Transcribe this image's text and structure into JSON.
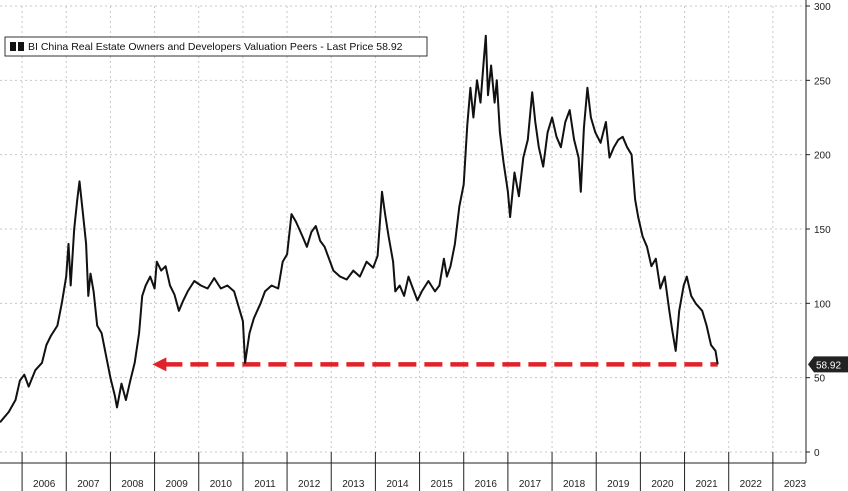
{
  "chart_data": {
    "type": "line",
    "title": "",
    "xlabel": "",
    "ylabel": "",
    "ylim": [
      0,
      300
    ],
    "xlim": [
      2005.5,
      2023.75
    ],
    "y_ticks": [
      0,
      50,
      100,
      150,
      200,
      250,
      300
    ],
    "x_tick_labels": [
      "2006",
      "2007",
      "2008",
      "2009",
      "2010",
      "2011",
      "2012",
      "2013",
      "2014",
      "2015",
      "2016",
      "2017",
      "2018",
      "2019",
      "2020",
      "2021",
      "2022",
      "2023"
    ],
    "grid": true,
    "legend_position": "top-left",
    "series": [
      {
        "name": "BI China Real Estate Owners and Developers Valuation Peers - Last Price 58.92",
        "color": "#111111",
        "points": [
          [
            2005.5,
            20
          ],
          [
            2005.7,
            27
          ],
          [
            2005.85,
            35
          ],
          [
            2005.95,
            48
          ],
          [
            2006.05,
            52
          ],
          [
            2006.15,
            44
          ],
          [
            2006.3,
            55
          ],
          [
            2006.45,
            60
          ],
          [
            2006.55,
            72
          ],
          [
            2006.65,
            78
          ],
          [
            2006.8,
            85
          ],
          [
            2006.9,
            100
          ],
          [
            2007.0,
            118
          ],
          [
            2007.05,
            140
          ],
          [
            2007.1,
            112
          ],
          [
            2007.18,
            150
          ],
          [
            2007.25,
            170
          ],
          [
            2007.3,
            182
          ],
          [
            2007.38,
            160
          ],
          [
            2007.45,
            140
          ],
          [
            2007.5,
            105
          ],
          [
            2007.55,
            120
          ],
          [
            2007.62,
            108
          ],
          [
            2007.7,
            85
          ],
          [
            2007.8,
            80
          ],
          [
            2007.9,
            65
          ],
          [
            2008.0,
            50
          ],
          [
            2008.1,
            38
          ],
          [
            2008.15,
            30
          ],
          [
            2008.25,
            46
          ],
          [
            2008.35,
            35
          ],
          [
            2008.45,
            48
          ],
          [
            2008.55,
            60
          ],
          [
            2008.65,
            80
          ],
          [
            2008.72,
            105
          ],
          [
            2008.8,
            112
          ],
          [
            2008.9,
            118
          ],
          [
            2009.0,
            110
          ],
          [
            2009.05,
            128
          ],
          [
            2009.15,
            122
          ],
          [
            2009.25,
            125
          ],
          [
            2009.35,
            112
          ],
          [
            2009.45,
            106
          ],
          [
            2009.55,
            95
          ],
          [
            2009.65,
            102
          ],
          [
            2009.75,
            108
          ],
          [
            2009.9,
            115
          ],
          [
            2010.05,
            112
          ],
          [
            2010.2,
            110
          ],
          [
            2010.35,
            117
          ],
          [
            2010.5,
            110
          ],
          [
            2010.65,
            112
          ],
          [
            2010.8,
            108
          ],
          [
            2010.9,
            98
          ],
          [
            2011.0,
            88
          ],
          [
            2011.05,
            60
          ],
          [
            2011.15,
            80
          ],
          [
            2011.25,
            90
          ],
          [
            2011.4,
            100
          ],
          [
            2011.5,
            108
          ],
          [
            2011.65,
            112
          ],
          [
            2011.8,
            110
          ],
          [
            2011.9,
            128
          ],
          [
            2012.0,
            133
          ],
          [
            2012.1,
            160
          ],
          [
            2012.2,
            155
          ],
          [
            2012.35,
            145
          ],
          [
            2012.45,
            138
          ],
          [
            2012.55,
            148
          ],
          [
            2012.65,
            152
          ],
          [
            2012.75,
            142
          ],
          [
            2012.85,
            138
          ],
          [
            2012.95,
            130
          ],
          [
            2013.05,
            122
          ],
          [
            2013.2,
            118
          ],
          [
            2013.35,
            116
          ],
          [
            2013.5,
            122
          ],
          [
            2013.65,
            118
          ],
          [
            2013.8,
            128
          ],
          [
            2013.95,
            124
          ],
          [
            2014.05,
            132
          ],
          [
            2014.15,
            175
          ],
          [
            2014.22,
            160
          ],
          [
            2014.3,
            145
          ],
          [
            2014.4,
            128
          ],
          [
            2014.45,
            108
          ],
          [
            2014.55,
            112
          ],
          [
            2014.65,
            105
          ],
          [
            2014.75,
            118
          ],
          [
            2014.85,
            110
          ],
          [
            2014.95,
            102
          ],
          [
            2015.05,
            108
          ],
          [
            2015.2,
            115
          ],
          [
            2015.35,
            108
          ],
          [
            2015.45,
            112
          ],
          [
            2015.55,
            130
          ],
          [
            2015.62,
            118
          ],
          [
            2015.7,
            125
          ],
          [
            2015.8,
            140
          ],
          [
            2015.9,
            165
          ],
          [
            2016.0,
            180
          ],
          [
            2016.08,
            220
          ],
          [
            2016.15,
            245
          ],
          [
            2016.22,
            225
          ],
          [
            2016.3,
            250
          ],
          [
            2016.38,
            235
          ],
          [
            2016.45,
            262
          ],
          [
            2016.5,
            280
          ],
          [
            2016.55,
            240
          ],
          [
            2016.62,
            260
          ],
          [
            2016.7,
            235
          ],
          [
            2016.75,
            250
          ],
          [
            2016.82,
            215
          ],
          [
            2016.9,
            195
          ],
          [
            2017.0,
            175
          ],
          [
            2017.05,
            158
          ],
          [
            2017.15,
            188
          ],
          [
            2017.25,
            172
          ],
          [
            2017.35,
            198
          ],
          [
            2017.45,
            210
          ],
          [
            2017.55,
            242
          ],
          [
            2017.62,
            222
          ],
          [
            2017.7,
            205
          ],
          [
            2017.8,
            192
          ],
          [
            2017.9,
            215
          ],
          [
            2018.0,
            225
          ],
          [
            2018.1,
            212
          ],
          [
            2018.2,
            205
          ],
          [
            2018.3,
            222
          ],
          [
            2018.4,
            230
          ],
          [
            2018.5,
            210
          ],
          [
            2018.6,
            198
          ],
          [
            2018.65,
            175
          ],
          [
            2018.72,
            218
          ],
          [
            2018.8,
            245
          ],
          [
            2018.88,
            225
          ],
          [
            2018.98,
            215
          ],
          [
            2019.1,
            208
          ],
          [
            2019.22,
            222
          ],
          [
            2019.3,
            198
          ],
          [
            2019.4,
            205
          ],
          [
            2019.5,
            210
          ],
          [
            2019.6,
            212
          ],
          [
            2019.7,
            205
          ],
          [
            2019.8,
            200
          ],
          [
            2019.88,
            170
          ],
          [
            2019.95,
            158
          ],
          [
            2020.05,
            145
          ],
          [
            2020.15,
            138
          ],
          [
            2020.25,
            125
          ],
          [
            2020.35,
            130
          ],
          [
            2020.45,
            110
          ],
          [
            2020.55,
            118
          ],
          [
            2020.65,
            96
          ],
          [
            2020.72,
            82
          ],
          [
            2020.8,
            68
          ],
          [
            2020.88,
            95
          ],
          [
            2020.98,
            112
          ],
          [
            2021.05,
            118
          ],
          [
            2021.15,
            105
          ],
          [
            2021.25,
            100
          ],
          [
            2021.4,
            95
          ],
          [
            2021.5,
            85
          ],
          [
            2021.6,
            72
          ],
          [
            2021.7,
            68
          ],
          [
            2021.75,
            58.92
          ]
        ]
      }
    ],
    "reference_line": {
      "value": 58.92,
      "from_x": 2008.95,
      "to_x": 2021.75,
      "color": "#e0232b",
      "style": "dashed",
      "arrow": "left"
    },
    "last_value_tag": "58.92"
  }
}
